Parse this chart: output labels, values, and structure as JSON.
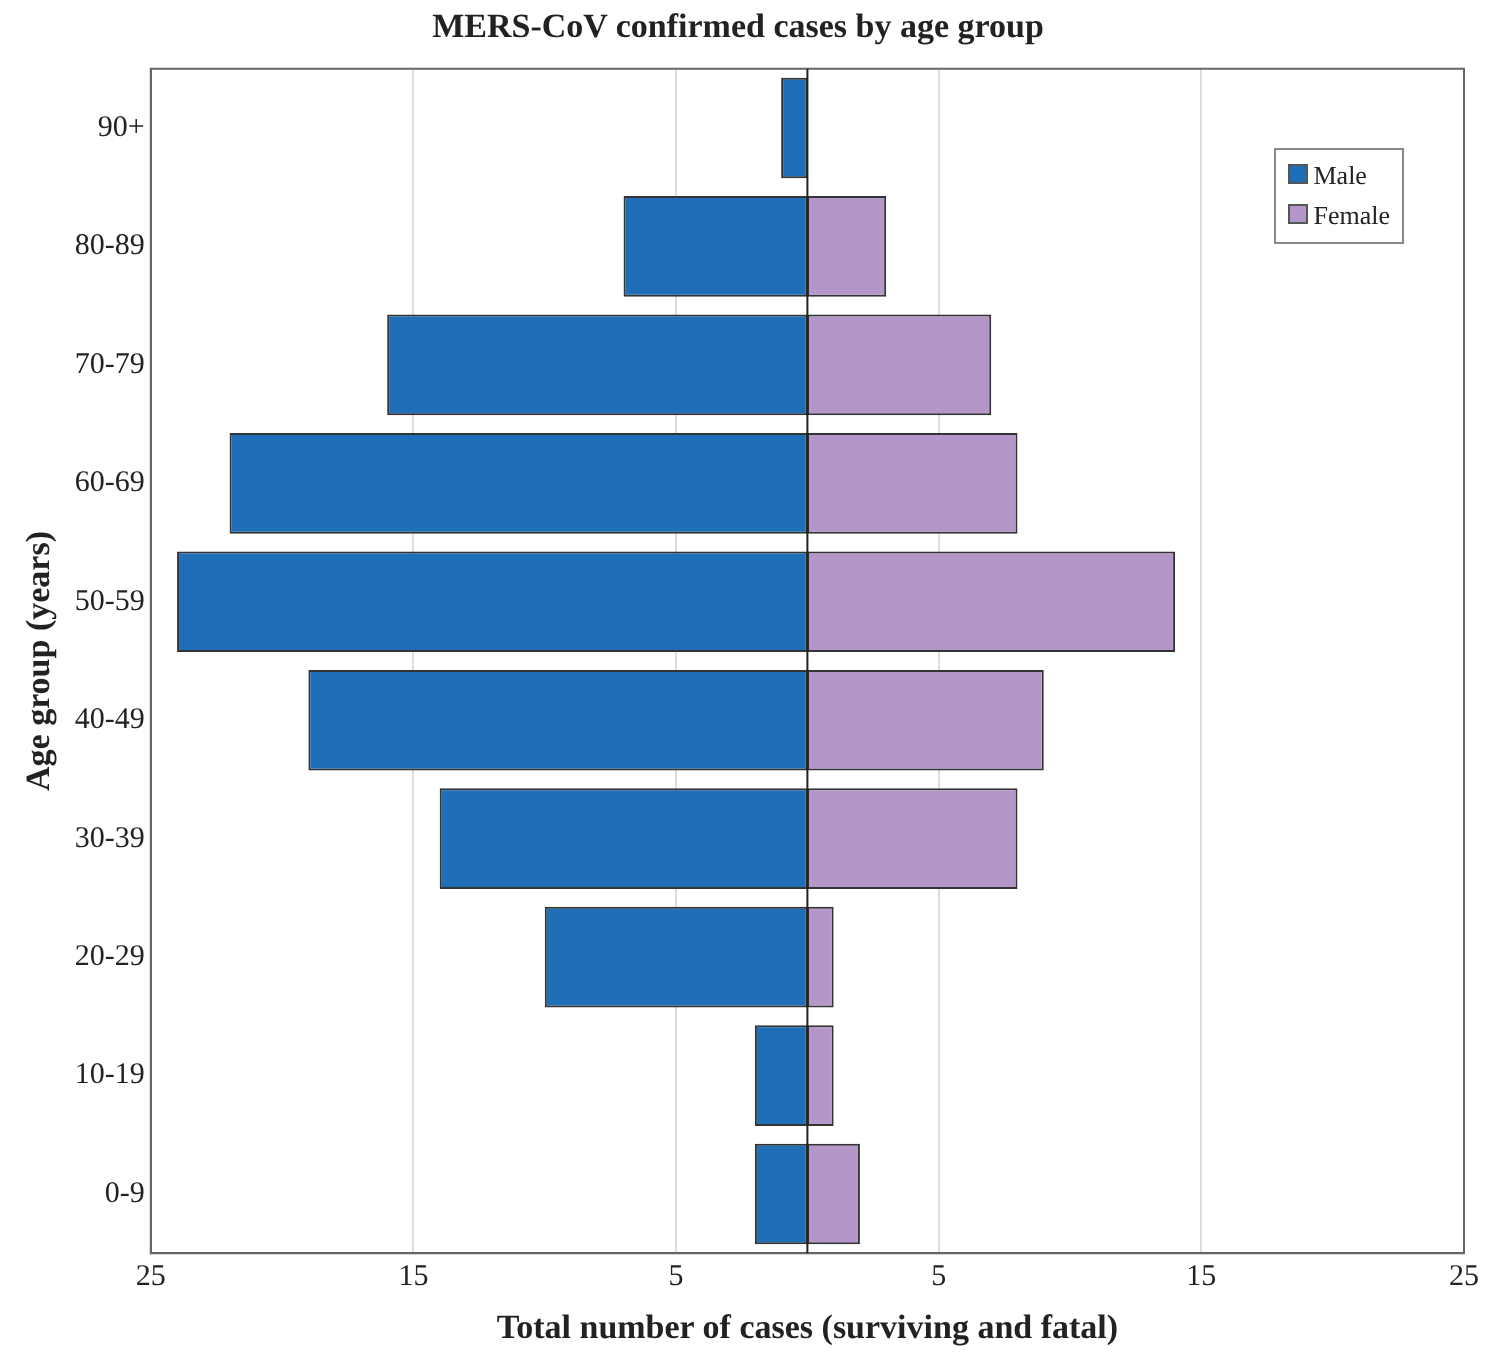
{
  "chart_data": {
    "type": "bar",
    "orientation": "horizontal",
    "stacked": true,
    "title": "MERS-CoV confirmed cases by age group",
    "xlabel": "Total number of cases (surviving and fatal)",
    "ylabel": "Age group (years)",
    "categories": [
      "90+",
      "80-89",
      "70-79",
      "60-69",
      "50-59",
      "40-49",
      "30-39",
      "20-29",
      "10-19",
      "0-9"
    ],
    "series": [
      {
        "name": "Male",
        "color": "#1f6eb8",
        "values": [
          -1,
          -7,
          -16,
          -22,
          -24,
          -19,
          -14,
          -10,
          -2,
          -2
        ]
      },
      {
        "name": "Female",
        "color": "#b497c8",
        "values": [
          0,
          3,
          7,
          8,
          14,
          9,
          8,
          1,
          1,
          2
        ]
      }
    ],
    "xlim": [
      -25,
      25
    ],
    "xticks": [
      {
        "value": -25,
        "label": "25"
      },
      {
        "value": -15,
        "label": "15"
      },
      {
        "value": -5,
        "label": "5"
      },
      5,
      15,
      25
    ],
    "grid": "x",
    "legend": "top right"
  }
}
